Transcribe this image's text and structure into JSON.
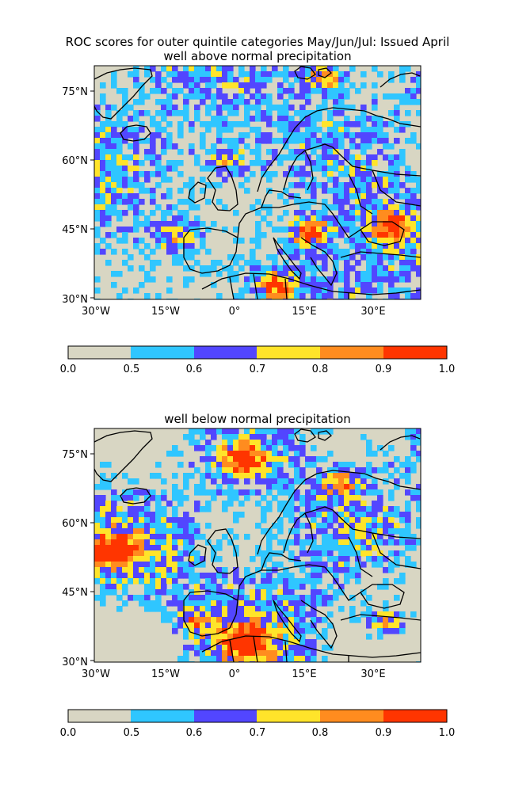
{
  "figure": {
    "title_line1": "ROC scores for outer quintile categories May/Jun/Jul: Issued April"
  },
  "panels": [
    {
      "subtitle": "well above normal precipitation"
    },
    {
      "subtitle": "well below normal precipitation"
    }
  ],
  "map": {
    "lat_ticks": [
      "75°N",
      "60°N",
      "45°N",
      "30°N"
    ],
    "lon_ticks": [
      "30°W",
      "15°W",
      "0°",
      "15°E",
      "30°E"
    ],
    "lat_values": [
      75,
      60,
      45,
      30
    ],
    "lon_values": [
      -30,
      -15,
      0,
      15,
      30
    ],
    "extent": {
      "lon": [
        -30,
        40
      ],
      "lat": [
        30,
        80
      ]
    }
  },
  "colorbar": {
    "boundaries": [
      "0.0",
      "0.5",
      "0.6",
      "0.7",
      "0.8",
      "0.9",
      "1.0"
    ],
    "colors": [
      "#d8d6c3",
      "#2fc6ff",
      "#5246ff",
      "#ffe42a",
      "#ff8c1f",
      "#ff3500"
    ]
  },
  "chart_data": [
    {
      "type": "heatmap",
      "title": "well above normal precipitation",
      "xlabel": "",
      "ylabel": "",
      "x_range": [
        -30,
        40
      ],
      "y_range": [
        30,
        80
      ],
      "color_scale": [
        0.0,
        0.5,
        0.6,
        0.7,
        0.8,
        0.9,
        1.0
      ]
    },
    {
      "type": "heatmap",
      "title": "well below normal precipitation",
      "xlabel": "",
      "ylabel": "",
      "x_range": [
        -30,
        40
      ],
      "y_range": [
        30,
        80
      ],
      "color_scale": [
        0.0,
        0.5,
        0.6,
        0.7,
        0.8,
        0.9,
        1.0
      ]
    }
  ]
}
